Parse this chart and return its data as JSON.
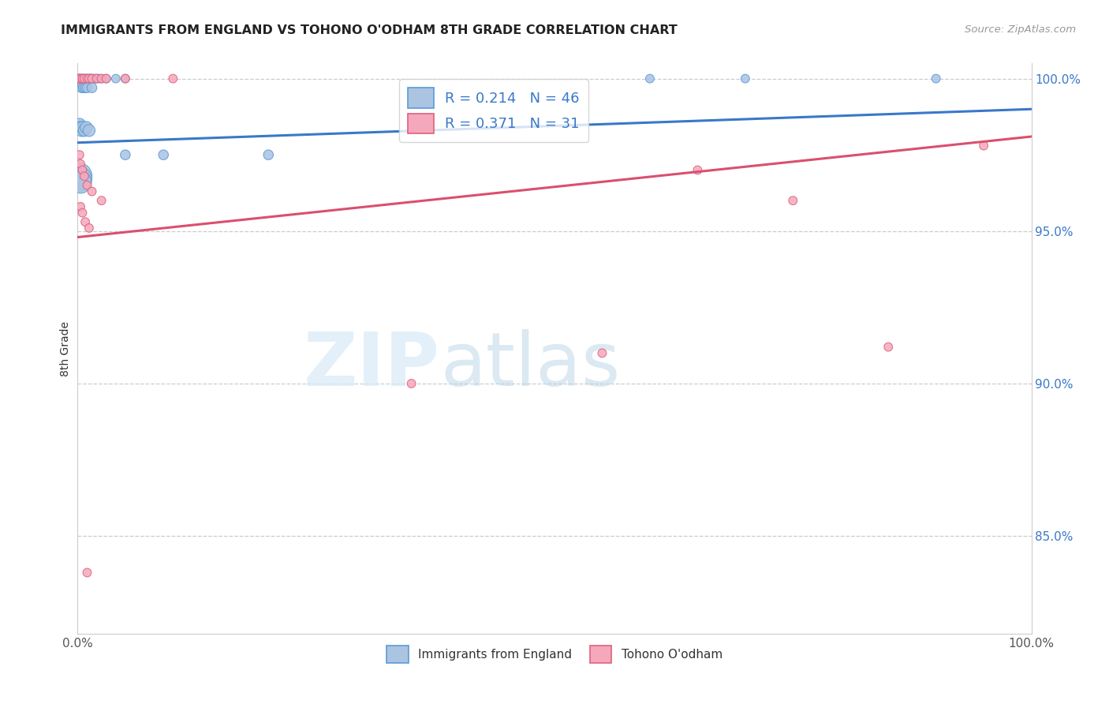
{
  "title": "IMMIGRANTS FROM ENGLAND VS TOHONO O'ODHAM 8TH GRADE CORRELATION CHART",
  "source": "Source: ZipAtlas.com",
  "ylabel": "8th Grade",
  "blue_R": 0.214,
  "blue_N": 46,
  "pink_R": 0.371,
  "pink_N": 31,
  "blue_color": "#aac4e2",
  "pink_color": "#f5a8bb",
  "blue_edge_color": "#5b9bd5",
  "pink_edge_color": "#e0607e",
  "blue_line_color": "#3a78c9",
  "pink_line_color": "#d9506e",
  "legend_label_blue": "Immigrants from England",
  "legend_label_pink": "Tohono O'odham",
  "watermark_zip": "ZIP",
  "watermark_atlas": "atlas",
  "xlim": [
    0.0,
    1.0
  ],
  "ylim": [
    0.818,
    1.005
  ],
  "yticks": [
    0.85,
    0.9,
    0.95,
    1.0
  ],
  "ytick_labels": [
    "85.0%",
    "90.0%",
    "95.0%",
    "100.0%"
  ],
  "blue_trend_x": [
    0.0,
    1.0
  ],
  "blue_trend_y": [
    0.979,
    0.99
  ],
  "pink_trend_x": [
    0.0,
    1.0
  ],
  "pink_trend_y": [
    0.948,
    0.981
  ],
  "blue_x": [
    0.001,
    0.002,
    0.003,
    0.004,
    0.005,
    0.006,
    0.007,
    0.008,
    0.009,
    0.01,
    0.011,
    0.012,
    0.013,
    0.014,
    0.015,
    0.016,
    0.018,
    0.02,
    0.022,
    0.025,
    0.03,
    0.04,
    0.05,
    0.003,
    0.004,
    0.005,
    0.006,
    0.008,
    0.01,
    0.015,
    0.002,
    0.003,
    0.004,
    0.005,
    0.007,
    0.009,
    0.012,
    0.05,
    0.09,
    0.2,
    0.001,
    0.002,
    0.003,
    0.6,
    0.7,
    0.9
  ],
  "blue_y": [
    1.0,
    1.0,
    1.0,
    1.0,
    1.0,
    1.0,
    1.0,
    1.0,
    1.0,
    1.0,
    1.0,
    1.0,
    1.0,
    1.0,
    1.0,
    1.0,
    1.0,
    1.0,
    1.0,
    1.0,
    1.0,
    1.0,
    1.0,
    0.998,
    0.997,
    0.998,
    0.997,
    0.997,
    0.997,
    0.997,
    0.985,
    0.984,
    0.983,
    0.984,
    0.983,
    0.984,
    0.983,
    0.975,
    0.975,
    0.975,
    0.968,
    0.967,
    0.966,
    1.0,
    1.0,
    1.0
  ],
  "blue_s": [
    60,
    60,
    60,
    60,
    60,
    60,
    60,
    60,
    60,
    60,
    60,
    60,
    60,
    60,
    60,
    60,
    60,
    60,
    60,
    60,
    60,
    60,
    60,
    80,
    80,
    80,
    80,
    80,
    80,
    80,
    120,
    120,
    120,
    120,
    120,
    120,
    120,
    80,
    80,
    80,
    600,
    500,
    400,
    60,
    60,
    60
  ],
  "pink_x": [
    0.001,
    0.002,
    0.003,
    0.005,
    0.007,
    0.01,
    0.012,
    0.015,
    0.02,
    0.025,
    0.03,
    0.05,
    0.1,
    0.002,
    0.003,
    0.005,
    0.007,
    0.01,
    0.015,
    0.025,
    0.003,
    0.005,
    0.008,
    0.012,
    0.35,
    0.55,
    0.65,
    0.75,
    0.85,
    0.95,
    0.01
  ],
  "pink_y": [
    1.0,
    1.0,
    1.0,
    1.0,
    1.0,
    1.0,
    1.0,
    1.0,
    1.0,
    1.0,
    1.0,
    1.0,
    1.0,
    0.975,
    0.972,
    0.97,
    0.968,
    0.965,
    0.963,
    0.96,
    0.958,
    0.956,
    0.953,
    0.951,
    0.9,
    0.91,
    0.97,
    0.96,
    0.912,
    0.978,
    0.838
  ],
  "pink_s": [
    60,
    60,
    60,
    60,
    60,
    60,
    60,
    60,
    60,
    60,
    60,
    60,
    60,
    60,
    60,
    60,
    60,
    60,
    60,
    60,
    60,
    60,
    60,
    60,
    60,
    60,
    60,
    60,
    60,
    60,
    60
  ]
}
